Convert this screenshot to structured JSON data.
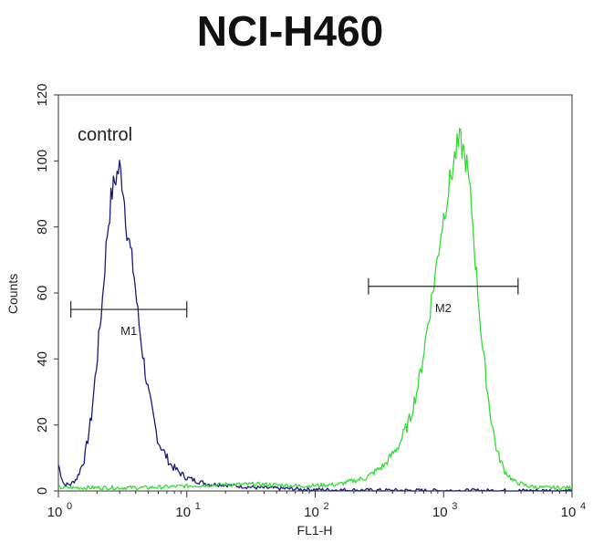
{
  "chart_data": {
    "type": "line",
    "title": "NCI-H460",
    "xlabel": "FL1-H",
    "ylabel": "Counts",
    "x_scale": "log",
    "xlim": [
      1,
      10000
    ],
    "ylim": [
      0,
      120
    ],
    "x_ticks": [
      {
        "value": 1,
        "base": "10",
        "exp": "0"
      },
      {
        "value": 10,
        "base": "10",
        "exp": "1"
      },
      {
        "value": 100,
        "base": "10",
        "exp": "2"
      },
      {
        "value": 1000,
        "base": "10",
        "exp": "3"
      },
      {
        "value": 10000,
        "base": "10",
        "exp": "4"
      }
    ],
    "y_ticks": [
      0,
      20,
      40,
      60,
      80,
      100,
      120
    ],
    "annotation": "control",
    "series": [
      {
        "color": "#1a1a7a",
        "x": [
          1.0,
          1.1,
          1.25,
          1.4,
          1.6,
          1.8,
          2.0,
          2.2,
          2.4,
          2.6,
          2.8,
          3.0,
          3.2,
          3.4,
          3.6,
          3.9,
          4.2,
          4.6,
          5.0,
          5.5,
          6.0,
          6.8,
          7.5,
          8.5,
          10,
          12,
          15,
          18,
          25,
          35,
          50,
          80,
          150,
          300,
          1000,
          10000
        ],
        "y": [
          8,
          2,
          2,
          4,
          10,
          22,
          40,
          58,
          78,
          90,
          95,
          98,
          92,
          80,
          74,
          65,
          52,
          40,
          30,
          22,
          15,
          11,
          8,
          6,
          4,
          3,
          2,
          2,
          1.5,
          1,
          0.8,
          0.5,
          0.3,
          0.2,
          0.1,
          0.1
        ]
      },
      {
        "color": "#33dd33",
        "x": [
          1.0,
          2.0,
          5.0,
          10,
          20,
          40,
          80,
          150,
          250,
          350,
          450,
          550,
          650,
          750,
          850,
          950,
          1050,
          1150,
          1250,
          1350,
          1500,
          1650,
          1800,
          2000,
          2300,
          2600,
          3000,
          3500,
          4500,
          6000,
          8000,
          10000
        ],
        "y": [
          1,
          1,
          1,
          1.5,
          2,
          2,
          1.5,
          2,
          4,
          8,
          14,
          22,
          34,
          50,
          64,
          78,
          88,
          96,
          103,
          106,
          100,
          86,
          66,
          44,
          24,
          12,
          6,
          3,
          1.5,
          1,
          1,
          1
        ]
      }
    ],
    "markers": [
      {
        "label": "M1",
        "x1": 1.25,
        "x2": 10,
        "y": 55
      },
      {
        "label": "M2",
        "x1": 260,
        "x2": 3800,
        "y": 62
      }
    ]
  }
}
